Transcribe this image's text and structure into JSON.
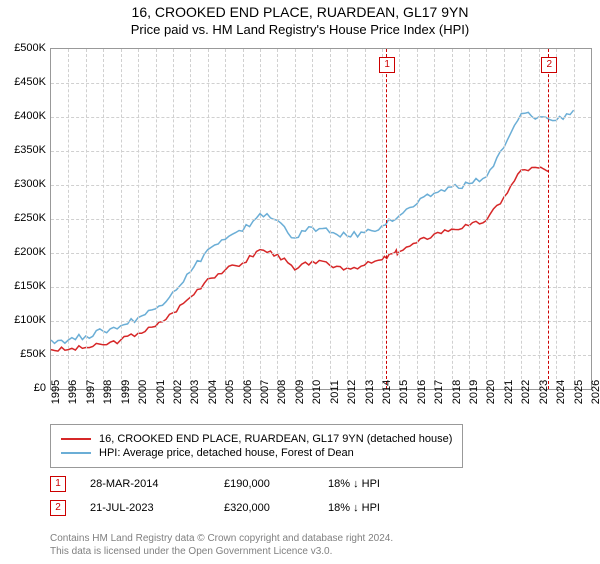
{
  "title": "16, CROOKED END PLACE, RUARDEAN, GL17 9YN",
  "subtitle": "Price paid vs. HM Land Registry's House Price Index (HPI)",
  "chart": {
    "type": "line",
    "background_color": "#ffffff",
    "grid_color": "#d0d0d0",
    "grid_dash": true,
    "xlim": [
      1995,
      2026
    ],
    "ylim": [
      0,
      500000
    ],
    "ytick_step": 50000,
    "ytick_prefix": "£",
    "ytick_suffix_thousands": "K",
    "xticks": [
      1995,
      1996,
      1997,
      1998,
      1999,
      2000,
      2001,
      2002,
      2003,
      2004,
      2005,
      2006,
      2007,
      2008,
      2009,
      2010,
      2011,
      2012,
      2013,
      2014,
      2015,
      2016,
      2017,
      2018,
      2019,
      2020,
      2021,
      2022,
      2023,
      2024,
      2025,
      2026
    ],
    "title_fontsize": 14,
    "subtitle_fontsize": 13,
    "tick_fontsize": 11,
    "series": [
      {
        "name": "property",
        "label": "16, CROOKED END PLACE, RUARDEAN, GL17 9YN (detached house)",
        "color": "#d62728",
        "line_width": 1.5,
        "data": [
          [
            1995,
            58000
          ],
          [
            1996,
            58000
          ],
          [
            1997,
            61000
          ],
          [
            1998,
            65000
          ],
          [
            1999,
            72000
          ],
          [
            2000,
            82000
          ],
          [
            2001,
            92000
          ],
          [
            2002,
            112000
          ],
          [
            2003,
            135000
          ],
          [
            2004,
            162000
          ],
          [
            2005,
            175000
          ],
          [
            2006,
            185000
          ],
          [
            2007,
            205000
          ],
          [
            2008,
            198000
          ],
          [
            2009,
            175000
          ],
          [
            2010,
            188000
          ],
          [
            2011,
            182000
          ],
          [
            2012,
            178000
          ],
          [
            2013,
            182000
          ],
          [
            2014,
            190000
          ],
          [
            2014.7,
            200000
          ],
          [
            2015,
            202000
          ],
          [
            2016,
            215000
          ],
          [
            2017,
            228000
          ],
          [
            2018,
            235000
          ],
          [
            2019,
            240000
          ],
          [
            2020,
            248000
          ],
          [
            2021,
            282000
          ],
          [
            2022,
            322000
          ],
          [
            2023,
            325000
          ],
          [
            2023.55,
            320000
          ]
        ],
        "noise_amplitude": 8000,
        "noise_count": 4
      },
      {
        "name": "hpi",
        "label": "HPI: Average price, detached house, Forest of Dean",
        "color": "#6baed6",
        "line_width": 1.5,
        "data": [
          [
            1995,
            72000
          ],
          [
            1996,
            72000
          ],
          [
            1997,
            78000
          ],
          [
            1998,
            85000
          ],
          [
            1999,
            93000
          ],
          [
            2000,
            105000
          ],
          [
            2001,
            118000
          ],
          [
            2002,
            143000
          ],
          [
            2003,
            172000
          ],
          [
            2004,
            205000
          ],
          [
            2005,
            220000
          ],
          [
            2006,
            232000
          ],
          [
            2007,
            258000
          ],
          [
            2008,
            248000
          ],
          [
            2009,
            222000
          ],
          [
            2010,
            238000
          ],
          [
            2011,
            230000
          ],
          [
            2012,
            225000
          ],
          [
            2013,
            230000
          ],
          [
            2014,
            240000
          ],
          [
            2015,
            255000
          ],
          [
            2016,
            272000
          ],
          [
            2017,
            288000
          ],
          [
            2018,
            297000
          ],
          [
            2019,
            302000
          ],
          [
            2020,
            312000
          ],
          [
            2021,
            355000
          ],
          [
            2022,
            405000
          ],
          [
            2023,
            400000
          ],
          [
            2024,
            395000
          ],
          [
            2025,
            410000
          ]
        ],
        "noise_amplitude": 10000,
        "noise_count": 4
      }
    ],
    "markers": [
      {
        "id": "1",
        "x": 2014.24,
        "color": "#cc0000"
      },
      {
        "id": "2",
        "x": 2023.55,
        "color": "#cc0000"
      }
    ]
  },
  "legend": {
    "border_color": "#999999",
    "fontsize": 11
  },
  "sales": [
    {
      "id": "1",
      "date": "28-MAR-2014",
      "price": "£190,000",
      "diff": "18% ↓ HPI"
    },
    {
      "id": "2",
      "date": "21-JUL-2023",
      "price": "£320,000",
      "diff": "18% ↓ HPI"
    }
  ],
  "footer": {
    "line1": "Contains HM Land Registry data © Crown copyright and database right 2024.",
    "line2": "This data is licensed under the Open Government Licence v3.0.",
    "color": "#808080",
    "fontsize": 10
  }
}
